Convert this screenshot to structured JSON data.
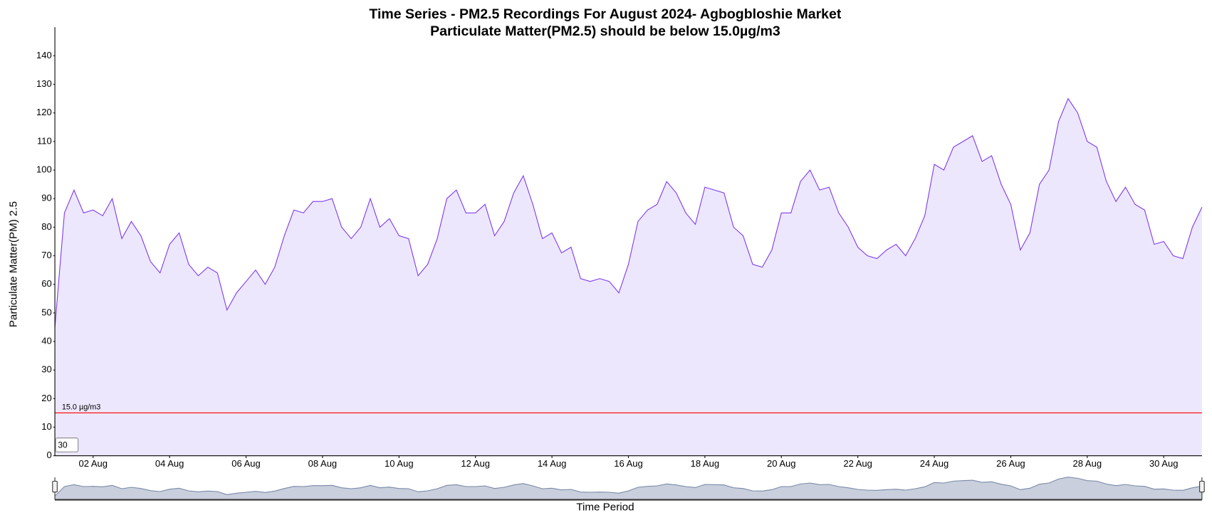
{
  "chart_data": {
    "type": "area",
    "title": "Time Series - PM2.5 Recordings For August 2024- Agbogbloshie Market",
    "subtitle": "Particulate Matter(PM2.5) should be below 15.0µg/m3",
    "subtitle_color": "#ff0000",
    "y_label": "Particulate Matter(PM) 2.5",
    "x_label": "Time Period",
    "range_box": "30",
    "categories": [
      null,
      null,
      null,
      null,
      "02 Aug",
      null,
      null,
      null,
      null,
      null,
      null,
      null,
      "04 Aug",
      null,
      null,
      null,
      null,
      null,
      null,
      null,
      "06 Aug",
      null,
      null,
      null,
      null,
      null,
      null,
      null,
      "08 Aug",
      null,
      null,
      null,
      null,
      null,
      null,
      null,
      "10 Aug",
      null,
      null,
      null,
      null,
      null,
      null,
      null,
      "12 Aug",
      null,
      null,
      null,
      null,
      null,
      null,
      null,
      "14 Aug",
      null,
      null,
      null,
      null,
      null,
      null,
      null,
      "16 Aug",
      null,
      null,
      null,
      null,
      null,
      null,
      null,
      "18 Aug",
      null,
      null,
      null,
      null,
      null,
      null,
      null,
      "20 Aug",
      null,
      null,
      null,
      null,
      null,
      null,
      null,
      "22 Aug",
      null,
      null,
      null,
      null,
      null,
      null,
      null,
      "24 Aug",
      null,
      null,
      null,
      null,
      null,
      null,
      null,
      "26 Aug",
      null,
      null,
      null,
      null,
      null,
      null,
      null,
      "28 Aug",
      null,
      null,
      null,
      null,
      null,
      null,
      null,
      "30 Aug",
      null,
      null,
      null,
      null
    ],
    "series": [
      {
        "name": "PM2.5",
        "color": "#7c3aed",
        "fill": "#ede7fd",
        "values": [
          45,
          85,
          93,
          85,
          86,
          84,
          90,
          76,
          82,
          77,
          68,
          64,
          74,
          78,
          67,
          63,
          66,
          64,
          51,
          57,
          61,
          65,
          60,
          66,
          77,
          86,
          85,
          89,
          89,
          90,
          80,
          76,
          80,
          90,
          80,
          83,
          77,
          76,
          63,
          67,
          76,
          90,
          93,
          85,
          85,
          88,
          77,
          82,
          92,
          98,
          88,
          76,
          78,
          71,
          73,
          62,
          61,
          62,
          61,
          57,
          67,
          82,
          86,
          88,
          96,
          92,
          85,
          81,
          94,
          93,
          92,
          80,
          77,
          67,
          66,
          72,
          85,
          85,
          96,
          100,
          93,
          94,
          85,
          80,
          73,
          70,
          69,
          72,
          74,
          70,
          76,
          84,
          102,
          100,
          108,
          110,
          112,
          103,
          105,
          95,
          88,
          72,
          78,
          95,
          100,
          117,
          125,
          120,
          110,
          108,
          96,
          89,
          94,
          88,
          86,
          74,
          75,
          70,
          69,
          80,
          87
        ]
      }
    ],
    "threshold": {
      "value": 15,
      "label": "15.0 µg/m3",
      "color": "#ff0000"
    },
    "ylim": [
      0,
      150
    ],
    "yticks": [
      0,
      10,
      20,
      30,
      40,
      50,
      60,
      70,
      80,
      90,
      100,
      110,
      120,
      130,
      140
    ]
  }
}
